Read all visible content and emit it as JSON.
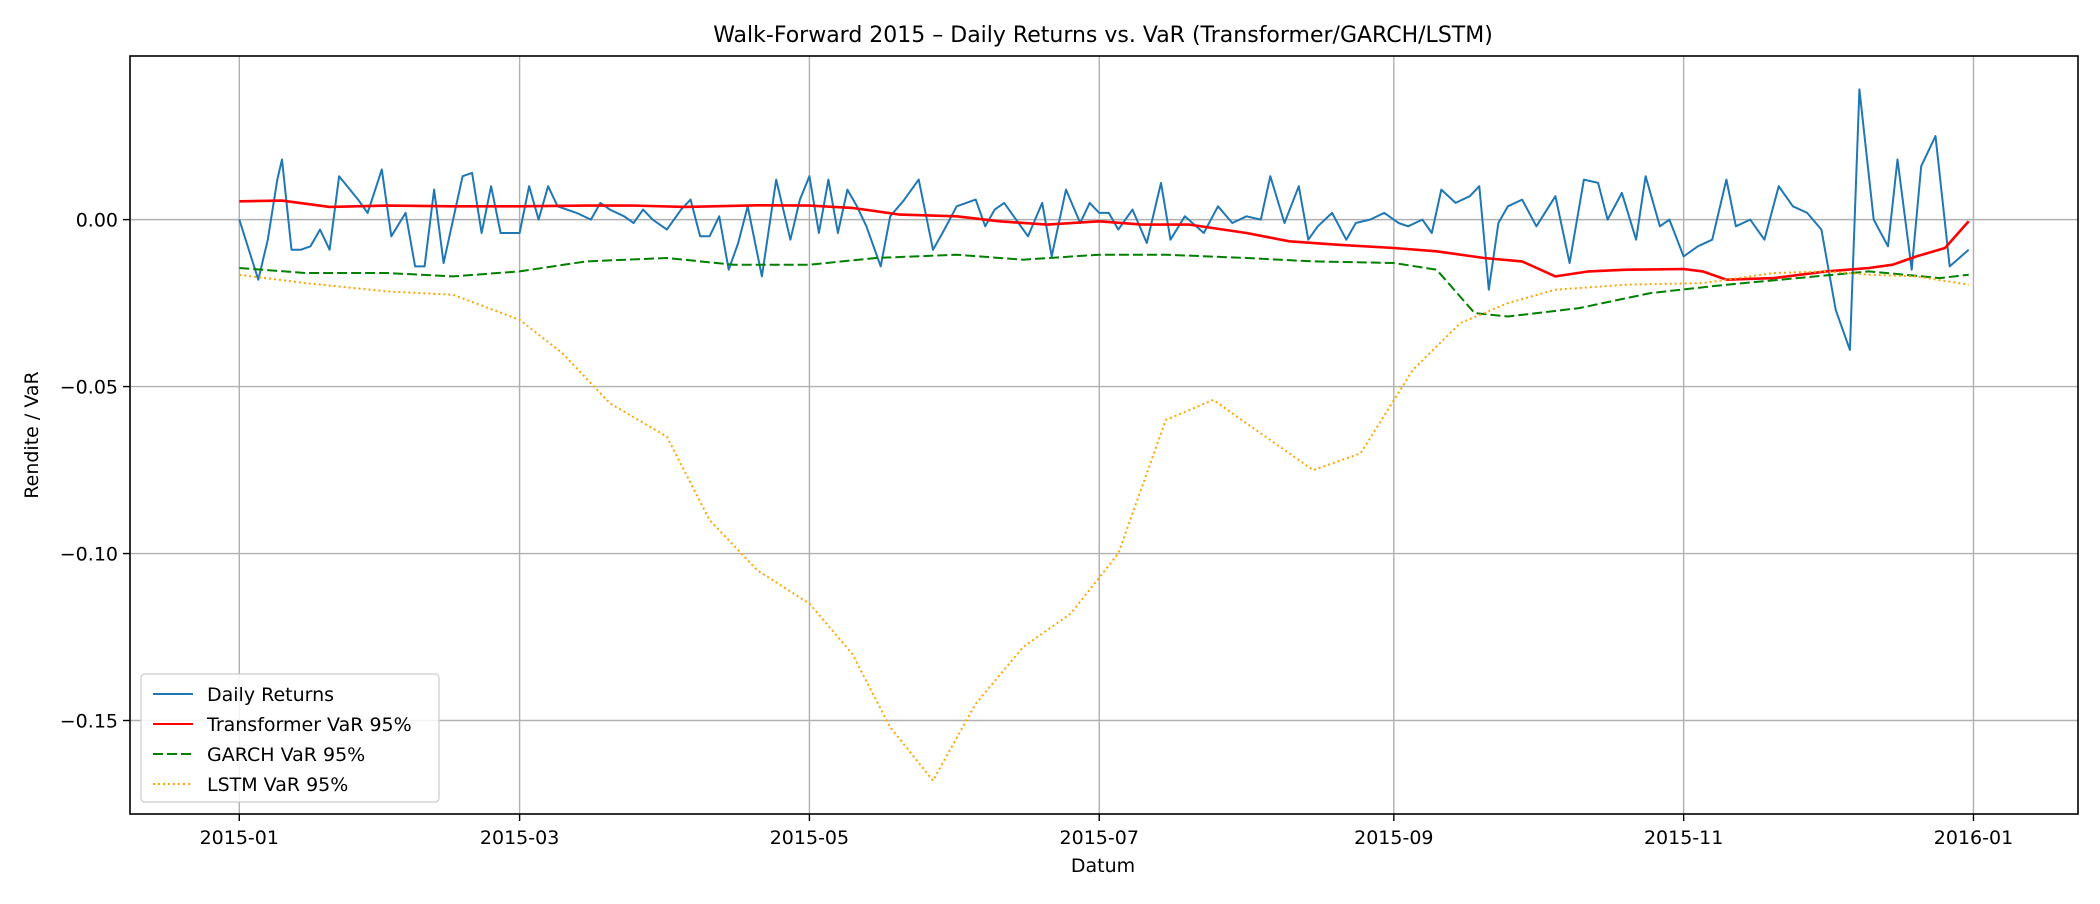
{
  "chart_data": {
    "type": "line",
    "title": "Walk-Forward 2015 – Daily Returns vs. VaR (Transformer/GARCH/LSTM)",
    "xlabel": "Datum",
    "ylabel": "Rendite / VaR",
    "xlim": [
      "2014-12-09",
      "2016-01-23"
    ],
    "ylim": [
      -0.178,
      0.049
    ],
    "xticks": [
      "2015-01",
      "2015-03",
      "2015-05",
      "2015-07",
      "2015-09",
      "2015-11",
      "2016-01"
    ],
    "yticks": [
      0.0,
      -0.05,
      -0.1,
      -0.15
    ],
    "ytick_labels": [
      "0.00",
      "−0.05",
      "−0.10",
      "−0.15"
    ],
    "grid": true,
    "legend_position": "lower-left",
    "series": [
      {
        "name": "Daily Returns",
        "color": "#1f77b4",
        "style": "solid",
        "points": [
          [
            "2015-01-01",
            0.0
          ],
          [
            "2015-01-05",
            -0.018
          ],
          [
            "2015-01-07",
            -0.006
          ],
          [
            "2015-01-09",
            0.012
          ],
          [
            "2015-01-10",
            0.018
          ],
          [
            "2015-01-12",
            -0.009
          ],
          [
            "2015-01-14",
            -0.009
          ],
          [
            "2015-01-16",
            -0.008
          ],
          [
            "2015-01-18",
            -0.003
          ],
          [
            "2015-01-20",
            -0.009
          ],
          [
            "2015-01-22",
            0.013
          ],
          [
            "2015-01-26",
            0.006
          ],
          [
            "2015-01-28",
            0.002
          ],
          [
            "2015-01-31",
            0.015
          ],
          [
            "2015-02-02",
            -0.005
          ],
          [
            "2015-02-05",
            0.002
          ],
          [
            "2015-02-07",
            -0.014
          ],
          [
            "2015-02-09",
            -0.014
          ],
          [
            "2015-02-11",
            0.009
          ],
          [
            "2015-02-13",
            -0.013
          ],
          [
            "2015-02-17",
            0.013
          ],
          [
            "2015-02-19",
            0.014
          ],
          [
            "2015-02-21",
            -0.004
          ],
          [
            "2015-02-23",
            0.01
          ],
          [
            "2015-02-25",
            -0.004
          ],
          [
            "2015-03-01",
            -0.004
          ],
          [
            "2015-03-03",
            0.01
          ],
          [
            "2015-03-05",
            0.0
          ],
          [
            "2015-03-07",
            0.01
          ],
          [
            "2015-03-09",
            0.004
          ],
          [
            "2015-03-13",
            0.002
          ],
          [
            "2015-03-16",
            0.0
          ],
          [
            "2015-03-18",
            0.005
          ],
          [
            "2015-03-20",
            0.003
          ],
          [
            "2015-03-23",
            0.001
          ],
          [
            "2015-03-25",
            -0.001
          ],
          [
            "2015-03-27",
            0.003
          ],
          [
            "2015-03-29",
            0.0
          ],
          [
            "2015-04-01",
            -0.003
          ],
          [
            "2015-04-04",
            0.003
          ],
          [
            "2015-04-06",
            0.006
          ],
          [
            "2015-04-08",
            -0.005
          ],
          [
            "2015-04-10",
            -0.005
          ],
          [
            "2015-04-12",
            0.001
          ],
          [
            "2015-04-14",
            -0.015
          ],
          [
            "2015-04-16",
            -0.007
          ],
          [
            "2015-04-18",
            0.004
          ],
          [
            "2015-04-21",
            -0.017
          ],
          [
            "2015-04-24",
            0.012
          ],
          [
            "2015-04-27",
            -0.006
          ],
          [
            "2015-04-29",
            0.006
          ],
          [
            "2015-05-01",
            0.013
          ],
          [
            "2015-05-03",
            -0.004
          ],
          [
            "2015-05-05",
            0.012
          ],
          [
            "2015-05-07",
            -0.004
          ],
          [
            "2015-05-09",
            0.009
          ],
          [
            "2015-05-11",
            0.004
          ],
          [
            "2015-05-13",
            -0.002
          ],
          [
            "2015-05-16",
            -0.014
          ],
          [
            "2015-05-18",
            0.001
          ],
          [
            "2015-05-21",
            0.006
          ],
          [
            "2015-05-24",
            0.012
          ],
          [
            "2015-05-27",
            -0.009
          ],
          [
            "2015-05-29",
            -0.004
          ],
          [
            "2015-06-01",
            0.004
          ],
          [
            "2015-06-03",
            0.005
          ],
          [
            "2015-06-05",
            0.006
          ],
          [
            "2015-06-07",
            -0.002
          ],
          [
            "2015-06-09",
            0.003
          ],
          [
            "2015-06-11",
            0.005
          ],
          [
            "2015-06-13",
            0.001
          ],
          [
            "2015-06-16",
            -0.005
          ],
          [
            "2015-06-19",
            0.005
          ],
          [
            "2015-06-21",
            -0.011
          ],
          [
            "2015-06-24",
            0.009
          ],
          [
            "2015-06-27",
            -0.001
          ],
          [
            "2015-06-29",
            0.005
          ],
          [
            "2015-07-01",
            0.002
          ],
          [
            "2015-07-03",
            0.002
          ],
          [
            "2015-07-05",
            -0.003
          ],
          [
            "2015-07-08",
            0.003
          ],
          [
            "2015-07-11",
            -0.007
          ],
          [
            "2015-07-14",
            0.011
          ],
          [
            "2015-07-16",
            -0.006
          ],
          [
            "2015-07-19",
            0.001
          ],
          [
            "2015-07-23",
            -0.004
          ],
          [
            "2015-07-26",
            0.004
          ],
          [
            "2015-07-29",
            -0.001
          ],
          [
            "2015-08-01",
            0.001
          ],
          [
            "2015-08-04",
            0.0
          ],
          [
            "2015-08-06",
            0.013
          ],
          [
            "2015-08-09",
            -0.001
          ],
          [
            "2015-08-12",
            0.01
          ],
          [
            "2015-08-14",
            -0.006
          ],
          [
            "2015-08-16",
            -0.002
          ],
          [
            "2015-08-19",
            0.002
          ],
          [
            "2015-08-22",
            -0.006
          ],
          [
            "2015-08-24",
            -0.001
          ],
          [
            "2015-08-27",
            0.0
          ],
          [
            "2015-08-30",
            0.002
          ],
          [
            "2015-09-02",
            -0.001
          ],
          [
            "2015-09-04",
            -0.002
          ],
          [
            "2015-09-07",
            0.0
          ],
          [
            "2015-09-09",
            -0.004
          ],
          [
            "2015-09-11",
            0.009
          ],
          [
            "2015-09-14",
            0.005
          ],
          [
            "2015-09-17",
            0.007
          ],
          [
            "2015-09-19",
            0.01
          ],
          [
            "2015-09-21",
            -0.021
          ],
          [
            "2015-09-23",
            -0.001
          ],
          [
            "2015-09-25",
            0.004
          ],
          [
            "2015-09-28",
            0.006
          ],
          [
            "2015-10-01",
            -0.002
          ],
          [
            "2015-10-05",
            0.007
          ],
          [
            "2015-10-08",
            -0.013
          ],
          [
            "2015-10-11",
            0.012
          ],
          [
            "2015-10-14",
            0.011
          ],
          [
            "2015-10-16",
            0.0
          ],
          [
            "2015-10-19",
            0.008
          ],
          [
            "2015-10-22",
            -0.006
          ],
          [
            "2015-10-24",
            0.013
          ],
          [
            "2015-10-27",
            -0.002
          ],
          [
            "2015-10-29",
            0.0
          ],
          [
            "2015-11-01",
            -0.011
          ],
          [
            "2015-11-04",
            -0.008
          ],
          [
            "2015-11-07",
            -0.006
          ],
          [
            "2015-11-10",
            0.012
          ],
          [
            "2015-11-12",
            -0.002
          ],
          [
            "2015-11-15",
            0.0
          ],
          [
            "2015-11-18",
            -0.006
          ],
          [
            "2015-11-21",
            0.01
          ],
          [
            "2015-11-24",
            0.004
          ],
          [
            "2015-11-27",
            0.002
          ],
          [
            "2015-11-30",
            -0.003
          ],
          [
            "2015-12-03",
            -0.027
          ],
          [
            "2015-12-06",
            -0.039
          ],
          [
            "2015-12-08",
            0.039
          ],
          [
            "2015-12-11",
            0.0
          ],
          [
            "2015-12-14",
            -0.008
          ],
          [
            "2015-12-16",
            0.018
          ],
          [
            "2015-12-19",
            -0.015
          ],
          [
            "2015-12-21",
            0.016
          ],
          [
            "2015-12-24",
            0.025
          ],
          [
            "2015-12-27",
            -0.014
          ],
          [
            "2015-12-31",
            -0.009
          ]
        ]
      },
      {
        "name": "Transformer VaR 95%",
        "color": "#ff0000",
        "style": "solid",
        "points": [
          [
            "2015-01-01",
            0.0055
          ],
          [
            "2015-01-10",
            0.0057
          ],
          [
            "2015-01-20",
            0.0038
          ],
          [
            "2015-02-01",
            0.0042
          ],
          [
            "2015-02-15",
            0.004
          ],
          [
            "2015-03-01",
            0.004
          ],
          [
            "2015-03-15",
            0.0042
          ],
          [
            "2015-03-25",
            0.0042
          ],
          [
            "2015-04-05",
            0.0038
          ],
          [
            "2015-04-20",
            0.0043
          ],
          [
            "2015-05-01",
            0.0042
          ],
          [
            "2015-05-10",
            0.0035
          ],
          [
            "2015-05-20",
            0.0015
          ],
          [
            "2015-06-01",
            0.001
          ],
          [
            "2015-06-10",
            -0.0005
          ],
          [
            "2015-06-20",
            -0.0015
          ],
          [
            "2015-07-01",
            -0.0005
          ],
          [
            "2015-07-10",
            -0.0015
          ],
          [
            "2015-07-20",
            -0.0015
          ],
          [
            "2015-08-01",
            -0.004
          ],
          [
            "2015-08-10",
            -0.0065
          ],
          [
            "2015-08-20",
            -0.0075
          ],
          [
            "2015-09-01",
            -0.0085
          ],
          [
            "2015-09-10",
            -0.0095
          ],
          [
            "2015-09-20",
            -0.0115
          ],
          [
            "2015-09-28",
            -0.0125
          ],
          [
            "2015-10-05",
            -0.017
          ],
          [
            "2015-10-12",
            -0.0155
          ],
          [
            "2015-10-20",
            -0.015
          ],
          [
            "2015-11-01",
            -0.0148
          ],
          [
            "2015-11-05",
            -0.0155
          ],
          [
            "2015-11-10",
            -0.018
          ],
          [
            "2015-11-20",
            -0.0175
          ],
          [
            "2015-12-01",
            -0.0155
          ],
          [
            "2015-12-10",
            -0.0145
          ],
          [
            "2015-12-15",
            -0.0135
          ],
          [
            "2015-12-20",
            -0.011
          ],
          [
            "2015-12-26",
            -0.0085
          ],
          [
            "2015-12-31",
            -0.0005
          ]
        ]
      },
      {
        "name": "GARCH VaR 95%",
        "color": "#008000",
        "style": "dashed",
        "points": [
          [
            "2015-01-01",
            -0.0145
          ],
          [
            "2015-01-15",
            -0.016
          ],
          [
            "2015-02-01",
            -0.016
          ],
          [
            "2015-02-15",
            -0.017
          ],
          [
            "2015-03-01",
            -0.0155
          ],
          [
            "2015-03-15",
            -0.0125
          ],
          [
            "2015-04-01",
            -0.0115
          ],
          [
            "2015-04-15",
            -0.0135
          ],
          [
            "2015-05-01",
            -0.0135
          ],
          [
            "2015-05-15",
            -0.0115
          ],
          [
            "2015-06-01",
            -0.0105
          ],
          [
            "2015-06-15",
            -0.012
          ],
          [
            "2015-07-01",
            -0.0105
          ],
          [
            "2015-07-15",
            -0.0105
          ],
          [
            "2015-08-01",
            -0.0115
          ],
          [
            "2015-08-15",
            -0.0125
          ],
          [
            "2015-09-01",
            -0.013
          ],
          [
            "2015-09-10",
            -0.015
          ],
          [
            "2015-09-18",
            -0.028
          ],
          [
            "2015-09-25",
            -0.029
          ],
          [
            "2015-10-10",
            -0.0265
          ],
          [
            "2015-10-25",
            -0.022
          ],
          [
            "2015-11-10",
            -0.0195
          ],
          [
            "2015-11-25",
            -0.0175
          ],
          [
            "2015-12-10",
            -0.0155
          ],
          [
            "2015-12-25",
            -0.0175
          ],
          [
            "2015-12-31",
            -0.0165
          ]
        ]
      },
      {
        "name": "LSTM VaR 95%",
        "color": "#ffa500",
        "style": "dotted",
        "points": [
          [
            "2015-01-01",
            -0.0165
          ],
          [
            "2015-01-15",
            -0.019
          ],
          [
            "2015-02-01",
            -0.0215
          ],
          [
            "2015-02-15",
            -0.0225
          ],
          [
            "2015-03-01",
            -0.03
          ],
          [
            "2015-03-10",
            -0.04
          ],
          [
            "2015-03-20",
            -0.055
          ],
          [
            "2015-04-01",
            -0.065
          ],
          [
            "2015-04-10",
            -0.09
          ],
          [
            "2015-04-20",
            -0.105
          ],
          [
            "2015-05-01",
            -0.115
          ],
          [
            "2015-05-10",
            -0.13
          ],
          [
            "2015-05-18",
            -0.152
          ],
          [
            "2015-05-27",
            -0.168
          ],
          [
            "2015-06-05",
            -0.145
          ],
          [
            "2015-06-15",
            -0.128
          ],
          [
            "2015-06-25",
            -0.118
          ],
          [
            "2015-07-05",
            -0.1
          ],
          [
            "2015-07-15",
            -0.06
          ],
          [
            "2015-07-25",
            -0.054
          ],
          [
            "2015-08-05",
            -0.065
          ],
          [
            "2015-08-15",
            -0.075
          ],
          [
            "2015-08-25",
            -0.07
          ],
          [
            "2015-09-05",
            -0.045
          ],
          [
            "2015-09-15",
            -0.031
          ],
          [
            "2015-09-25",
            -0.025
          ],
          [
            "2015-10-05",
            -0.021
          ],
          [
            "2015-10-20",
            -0.0195
          ],
          [
            "2015-11-05",
            -0.019
          ],
          [
            "2015-11-20",
            -0.016
          ],
          [
            "2015-12-01",
            -0.0155
          ],
          [
            "2015-12-10",
            -0.0165
          ],
          [
            "2015-12-20",
            -0.017
          ],
          [
            "2015-12-31",
            -0.0195
          ]
        ]
      }
    ]
  }
}
